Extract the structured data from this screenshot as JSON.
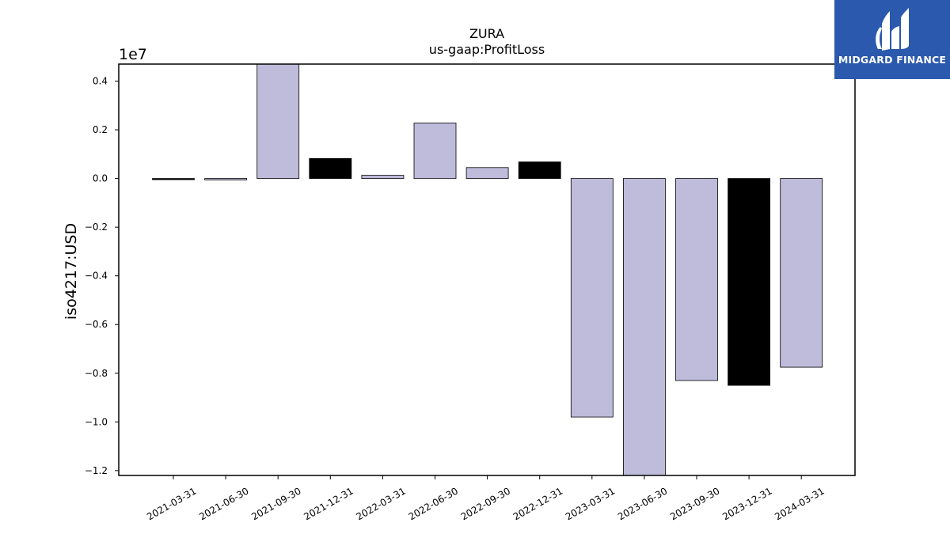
{
  "chart_data": {
    "type": "bar",
    "title": "ZURA",
    "subtitle": "us-gaap:ProfitLoss",
    "xlabel": "",
    "ylabel": "iso4217:USD",
    "y_multiplier_label": "1e7",
    "ylim": [
      -1.22,
      0.47
    ],
    "yticks": [
      0.4,
      0.2,
      0.0,
      -0.2,
      -0.4,
      -0.6,
      -0.8,
      -1.0,
      -1.2
    ],
    "ytick_labels": [
      "0.4",
      "0.2",
      "0.0",
      "−0.2",
      "−0.4",
      "−0.6",
      "−0.8",
      "−1.0",
      "−1.2"
    ],
    "categories": [
      "2021-03-31",
      "2021-06-30",
      "2021-09-30",
      "2021-12-31",
      "2022-03-31",
      "2022-06-30",
      "2022-09-30",
      "2022-12-31",
      "2023-03-31",
      "2023-06-30",
      "2023-09-30",
      "2023-12-31",
      "2024-03-31"
    ],
    "values": [
      -0.003,
      -0.006,
      0.47,
      0.082,
      0.013,
      0.228,
      0.045,
      0.068,
      -0.98,
      -1.22,
      -0.83,
      -0.85,
      -0.775
    ],
    "bar_colors": [
      "#000000",
      "#bebbdb",
      "#bebbdb",
      "#000000",
      "#bebbdb",
      "#bebbdb",
      "#bebbdb",
      "#000000",
      "#bebbdb",
      "#bebbdb",
      "#bebbdb",
      "#000000",
      "#bebbdb"
    ],
    "grid": false
  },
  "logo": {
    "text": "MIDGARD FINANCE",
    "background": "#2b59ad"
  }
}
